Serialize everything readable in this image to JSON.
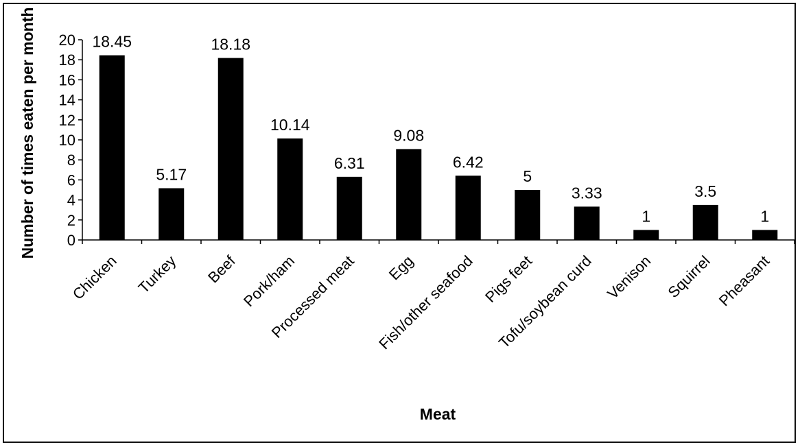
{
  "chart_data": {
    "type": "bar",
    "categories": [
      "Chicken",
      "Turkey",
      "Beef",
      "Pork/ham",
      "Processed meat",
      "Egg",
      "Fish/other seafood",
      "Pigs feet",
      "Tofu/soybean curd",
      "Venison",
      "Squirrel",
      "Pheasant"
    ],
    "values": [
      18.45,
      5.17,
      18.18,
      10.14,
      6.31,
      9.08,
      6.42,
      5,
      3.33,
      1,
      3.5,
      1
    ],
    "data_labels": [
      "18.45",
      "5.17",
      "18.18",
      "10.14",
      "6.31",
      "9.08",
      "6.42",
      "5",
      "3.33",
      "1",
      "3.5",
      "1"
    ],
    "title": "",
    "xlabel": "Meat",
    "ylabel": "Number of times eaten per month",
    "ylim": [
      0,
      20
    ],
    "yticks": [
      0,
      2,
      4,
      6,
      8,
      10,
      12,
      14,
      16,
      18,
      20
    ],
    "grid": false,
    "legend": "none",
    "bar_color": "#000000"
  }
}
